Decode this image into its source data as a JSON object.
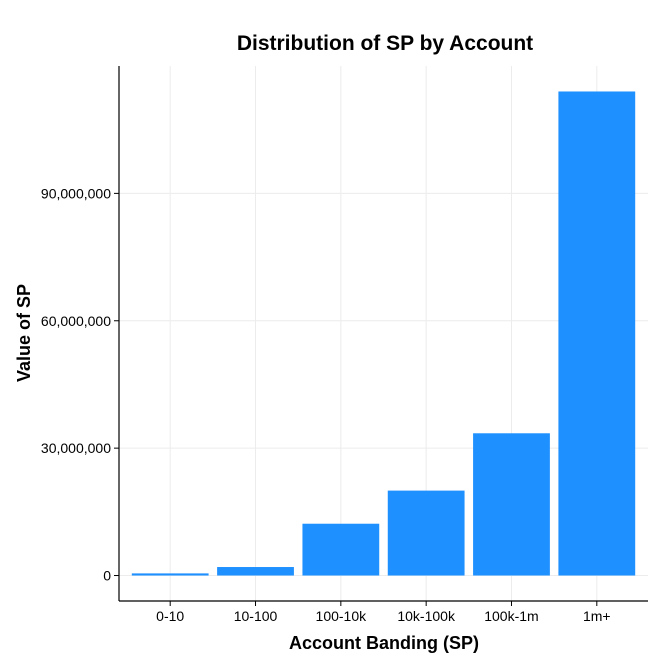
{
  "chart_data": {
    "type": "bar",
    "title": "Distribution of SP by Account",
    "xlabel": "Account Banding (SP)",
    "ylabel": "Value of SP",
    "categories": [
      "0-10",
      "10-100",
      "100-10k",
      "10k-100k",
      "100k-1m",
      "1m+"
    ],
    "values": [
      500000,
      2000000,
      12200000,
      20000000,
      33500000,
      114000000
    ],
    "yticks": [
      0,
      30000000,
      60000000,
      90000000
    ],
    "ytick_labels": [
      "0",
      "30,000,000",
      "60,000,000",
      "90,000,000"
    ],
    "ylim": [
      -6000000,
      120000000
    ],
    "bar_color": "#1e90ff",
    "grid": true,
    "legend": "none"
  }
}
